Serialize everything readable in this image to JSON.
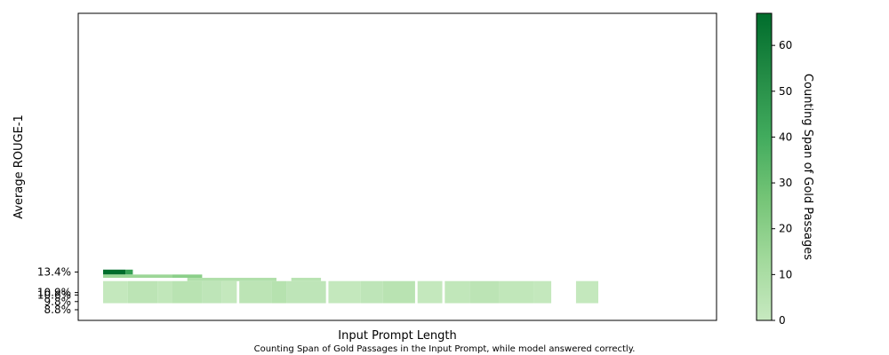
{
  "chart_data": {
    "type": "heatmap",
    "xlabel": "Input Prompt Length",
    "ylabel": "Average ROUGE-1",
    "caption": "Counting Span of Gold Passages in the Input Prompt, while model answered correctly.",
    "colorbar": {
      "label": "Counting Span of Gold Passages",
      "ticks": [
        0,
        10,
        20,
        30,
        40,
        50,
        60
      ],
      "range": [
        0,
        67
      ],
      "colors": [
        "#c7e9c0",
        "#a1d99b",
        "#74c476",
        "#41ab5d",
        "#238b45",
        "#006d2c"
      ]
    },
    "y_ticks": [
      {
        "label": "13.4%",
        "value": 13.4
      },
      {
        "label": "10.9%",
        "value": 10.9
      },
      {
        "label": "10.6%",
        "value": 10.6
      },
      {
        "label": "9.8%",
        "value": 9.8
      },
      {
        "label": "8.8%",
        "value": 8.8
      }
    ],
    "ylim": [
      7.5,
      45
    ],
    "rows": [
      {
        "y_top": 13.7,
        "y_bottom": 13.1,
        "cells": [
          {
            "x0": 0.0,
            "x1": 0.045,
            "value": 67
          },
          {
            "x0": 0.045,
            "x1": 0.06,
            "value": 45
          }
        ]
      },
      {
        "y_top": 13.1,
        "y_bottom": 12.7,
        "cells": [
          {
            "x0": 0.0,
            "x1": 0.14,
            "value": 15
          },
          {
            "x0": 0.14,
            "x1": 0.2,
            "value": 20
          }
        ]
      },
      {
        "y_top": 12.7,
        "y_bottom": 12.3,
        "cells": [
          {
            "x0": 0.17,
            "x1": 0.35,
            "value": 8
          },
          {
            "x0": 0.38,
            "x1": 0.44,
            "value": 5
          }
        ]
      },
      {
        "y_top": 12.3,
        "y_bottom": 9.6,
        "cells": [
          {
            "x0": 0.0,
            "x1": 0.05,
            "value": 1
          },
          {
            "x0": 0.05,
            "x1": 0.11,
            "value": 4
          },
          {
            "x0": 0.11,
            "x1": 0.14,
            "value": 2
          },
          {
            "x0": 0.14,
            "x1": 0.2,
            "value": 5
          },
          {
            "x0": 0.2,
            "x1": 0.24,
            "value": 3
          },
          {
            "x0": 0.24,
            "x1": 0.27,
            "value": 1
          },
          {
            "x0": 0.275,
            "x1": 0.34,
            "value": 4
          },
          {
            "x0": 0.34,
            "x1": 0.37,
            "value": 6
          },
          {
            "x0": 0.37,
            "x1": 0.45,
            "value": 3
          },
          {
            "x0": 0.455,
            "x1": 0.52,
            "value": 1
          },
          {
            "x0": 0.52,
            "x1": 0.565,
            "value": 3
          },
          {
            "x0": 0.565,
            "x1": 0.63,
            "value": 5
          },
          {
            "x0": 0.635,
            "x1": 0.685,
            "value": 1
          },
          {
            "x0": 0.69,
            "x1": 0.74,
            "value": 2
          },
          {
            "x0": 0.74,
            "x1": 0.8,
            "value": 4
          },
          {
            "x0": 0.8,
            "x1": 0.87,
            "value": 2
          },
          {
            "x0": 0.87,
            "x1": 0.905,
            "value": 1
          },
          {
            "x0": 0.955,
            "x1": 1.0,
            "value": 1
          }
        ]
      }
    ]
  }
}
